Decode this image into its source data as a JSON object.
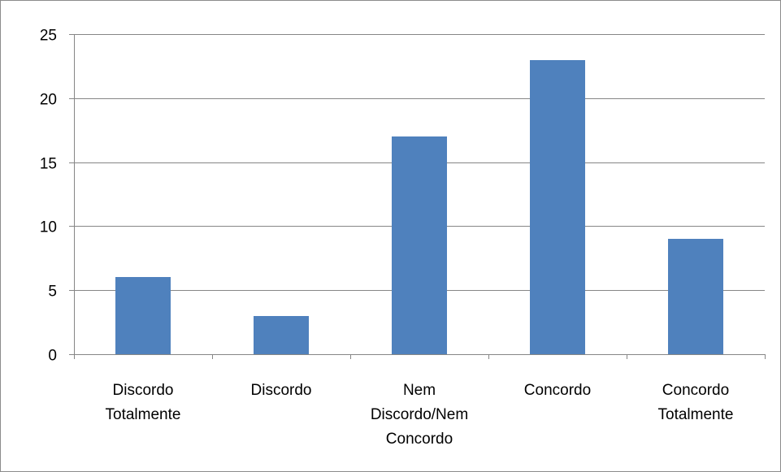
{
  "chart_data": {
    "type": "bar",
    "title": "",
    "xlabel": "",
    "ylabel": "",
    "categories": [
      [
        "Discordo",
        "Totalmente"
      ],
      [
        "Discordo"
      ],
      [
        "Nem",
        "Discordo/Nem",
        "Concordo"
      ],
      [
        "Concordo"
      ],
      [
        "Concordo",
        "Totalmente"
      ]
    ],
    "values": [
      6,
      3,
      17,
      23,
      9
    ],
    "ylim": [
      0,
      25
    ],
    "yticks": [
      "0",
      "5",
      "10",
      "15",
      "20",
      "25"
    ],
    "grid": true,
    "legend": "none",
    "colors": {
      "bar": "#4f81bd",
      "grid": "#868686",
      "axis": "#868686",
      "frame": "#8c8c8c"
    }
  }
}
